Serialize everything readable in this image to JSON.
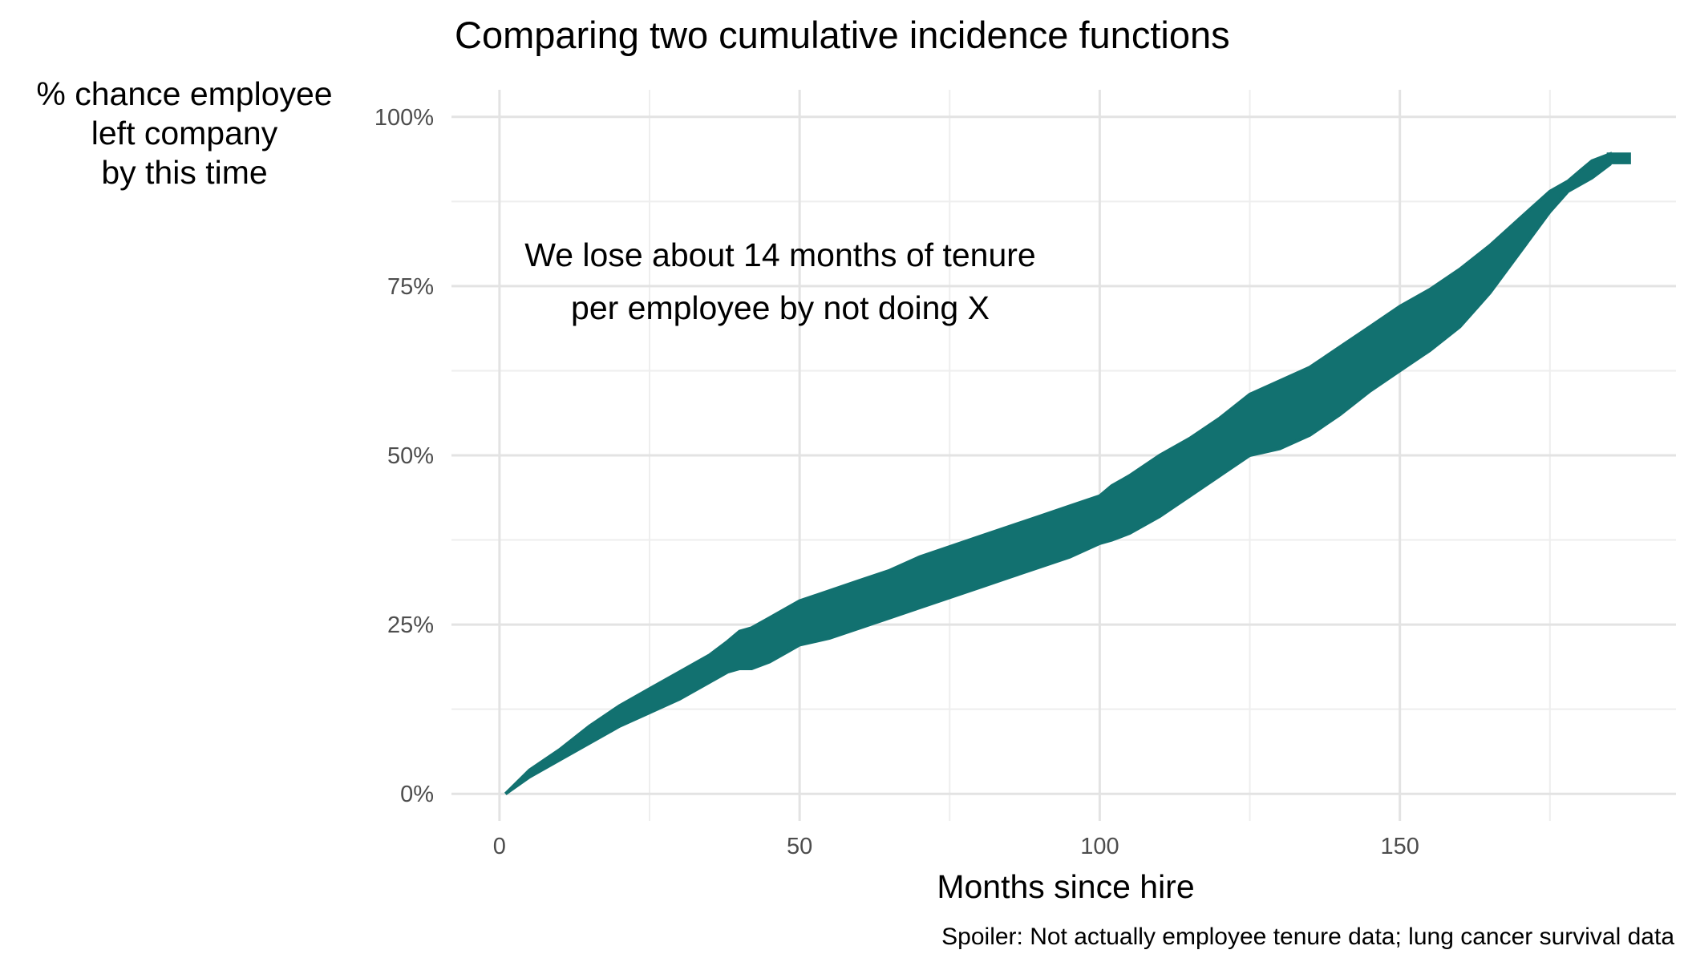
{
  "chart_data": {
    "type": "area",
    "title": "Comparing two cumulative incidence functions",
    "xlabel": "Months since hire",
    "ylabel": [
      "% chance employee",
      "left company",
      "by this time"
    ],
    "caption": "Spoiler: Not actually employee tenure data; lung cancer survival data",
    "annotation": [
      "We lose about 14 months of tenure",
      "per employee by not doing X"
    ],
    "xlim": [
      -8,
      196
    ],
    "ylim": [
      -0.04,
      1.04
    ],
    "x_ticks": [
      0,
      50,
      100,
      150
    ],
    "x_tick_labels": [
      "0",
      "50",
      "100",
      "150"
    ],
    "y_ticks": [
      0,
      0.25,
      0.5,
      0.75,
      1.0
    ],
    "y_tick_labels": [
      "0%",
      "25%",
      "50%",
      "75%",
      "100%"
    ],
    "grid": true,
    "colors": {
      "ribbon": "#127170",
      "grid": "#e3e3e3"
    },
    "series": [
      {
        "x": [
          1,
          5,
          10,
          15,
          20,
          25,
          30,
          35,
          38,
          40,
          42,
          45,
          48,
          50,
          55,
          60,
          65,
          70,
          75,
          80,
          85,
          90,
          95,
          100,
          102,
          105,
          110,
          115,
          120,
          125,
          130,
          135,
          140,
          145,
          150,
          155,
          160,
          165,
          170,
          175,
          178,
          180,
          182,
          185
        ],
        "lower": [
          0.0,
          0.025,
          0.05,
          0.075,
          0.1,
          0.12,
          0.14,
          0.165,
          0.18,
          0.185,
          0.185,
          0.195,
          0.21,
          0.22,
          0.23,
          0.245,
          0.26,
          0.275,
          0.29,
          0.305,
          0.32,
          0.335,
          0.35,
          0.37,
          0.375,
          0.385,
          0.41,
          0.44,
          0.47,
          0.5,
          0.51,
          0.53,
          0.56,
          0.595,
          0.625,
          0.655,
          0.69,
          0.74,
          0.8,
          0.86,
          0.89,
          0.9,
          0.91,
          0.93
        ],
        "upper": [
          0.0,
          0.035,
          0.065,
          0.1,
          0.13,
          0.155,
          0.18,
          0.205,
          0.225,
          0.24,
          0.245,
          0.26,
          0.275,
          0.285,
          0.3,
          0.315,
          0.33,
          0.35,
          0.365,
          0.38,
          0.395,
          0.41,
          0.425,
          0.44,
          0.455,
          0.47,
          0.5,
          0.525,
          0.555,
          0.59,
          0.61,
          0.63,
          0.66,
          0.69,
          0.72,
          0.745,
          0.775,
          0.81,
          0.85,
          0.89,
          0.905,
          0.92,
          0.935,
          0.945
        ]
      }
    ]
  }
}
